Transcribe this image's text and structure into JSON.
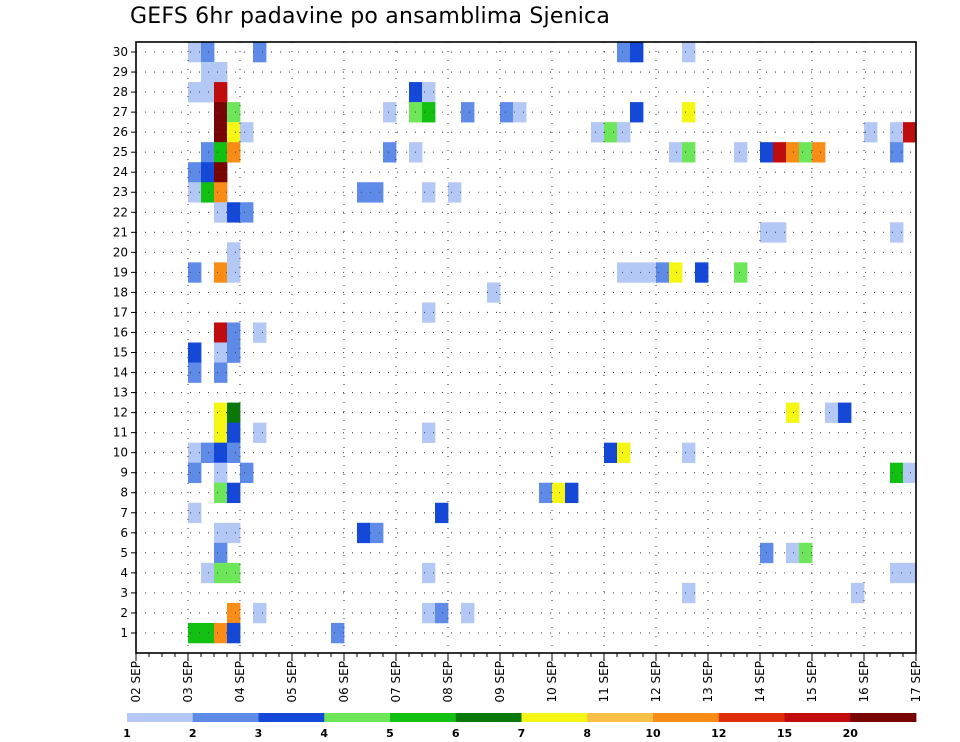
{
  "chart_data": {
    "type": "heatmap",
    "title": "GEFS 6hr padavine po ansamblima Sjenica",
    "xlabel": "",
    "ylabel": "",
    "x_ticks": [
      "02 SEP",
      "03 SEP",
      "04 SEP",
      "05 SEP",
      "06 SEP",
      "07 SEP",
      "08 SEP",
      "09 SEP",
      "10 SEP",
      "11 SEP",
      "12 SEP",
      "13 SEP",
      "14 SEP",
      "15 SEP",
      "16 SEP",
      "17 SEP"
    ],
    "y_ticks": [
      "1",
      "2",
      "3",
      "4",
      "5",
      "6",
      "7",
      "8",
      "9",
      "10",
      "11",
      "12",
      "13",
      "14",
      "15",
      "16",
      "17",
      "18",
      "19",
      "20",
      "21",
      "22",
      "23",
      "24",
      "25",
      "26",
      "27",
      "28",
      "29",
      "30"
    ],
    "ylim": [
      0,
      30.5
    ],
    "xlim": [
      0,
      60
    ],
    "time_step": "6hr",
    "grid": true,
    "colorbar": {
      "thresholds": [
        "1",
        "2",
        "3",
        "4",
        "5",
        "6",
        "7",
        "8",
        "10",
        "12",
        "15",
        "20"
      ],
      "colors": [
        "#b4c8f6",
        "#5e8ae8",
        "#1448d8",
        "#6ee65a",
        "#12c012",
        "#087808",
        "#f6f614",
        "#f8c046",
        "#f88c14",
        "#e02e0c",
        "#c00c0c",
        "#780404"
      ]
    },
    "cells": [
      [
        30,
        5,
        1
      ],
      [
        30,
        6,
        2
      ],
      [
        30,
        10,
        2
      ],
      [
        30,
        38,
        2
      ],
      [
        30,
        39,
        3
      ],
      [
        30,
        43,
        1
      ],
      [
        29,
        6,
        1
      ],
      [
        29,
        7,
        1
      ],
      [
        28,
        5,
        1
      ],
      [
        28,
        6,
        1
      ],
      [
        28,
        7,
        11
      ],
      [
        28,
        22,
        3
      ],
      [
        28,
        23,
        1
      ],
      [
        27,
        7,
        12
      ],
      [
        27,
        8,
        4
      ],
      [
        27,
        20,
        1
      ],
      [
        27,
        22,
        4
      ],
      [
        27,
        23,
        5
      ],
      [
        27,
        26,
        2
      ],
      [
        27,
        29,
        2
      ],
      [
        27,
        30,
        1
      ],
      [
        27,
        39,
        3
      ],
      [
        27,
        43,
        7
      ],
      [
        26,
        7,
        12
      ],
      [
        26,
        8,
        7
      ],
      [
        26,
        9,
        1
      ],
      [
        26,
        36,
        1
      ],
      [
        26,
        37,
        4
      ],
      [
        26,
        38,
        1
      ],
      [
        26,
        57,
        1
      ],
      [
        26,
        59,
        1
      ],
      [
        26,
        60,
        11
      ],
      [
        25,
        6,
        2
      ],
      [
        25,
        7,
        5
      ],
      [
        25,
        8,
        9
      ],
      [
        25,
        20,
        2
      ],
      [
        25,
        22,
        1
      ],
      [
        25,
        42,
        1
      ],
      [
        25,
        43,
        4
      ],
      [
        25,
        47,
        1
      ],
      [
        25,
        49,
        3
      ],
      [
        25,
        50,
        11
      ],
      [
        25,
        51,
        9
      ],
      [
        25,
        52,
        4
      ],
      [
        25,
        53,
        9
      ],
      [
        25,
        59,
        2
      ],
      [
        24,
        5,
        2
      ],
      [
        24,
        6,
        3
      ],
      [
        24,
        7,
        12
      ],
      [
        23,
        5,
        1
      ],
      [
        23,
        6,
        5
      ],
      [
        23,
        7,
        9
      ],
      [
        23,
        18,
        2
      ],
      [
        23,
        19,
        2
      ],
      [
        23,
        23,
        1
      ],
      [
        23,
        25,
        1
      ],
      [
        22,
        7,
        1
      ],
      [
        22,
        8,
        3
      ],
      [
        22,
        9,
        2
      ],
      [
        21,
        49,
        1
      ],
      [
        21,
        50,
        1
      ],
      [
        21,
        59,
        1
      ],
      [
        20,
        8,
        1
      ],
      [
        19,
        5,
        2
      ],
      [
        19,
        7,
        9
      ],
      [
        19,
        8,
        1
      ],
      [
        19,
        38,
        1
      ],
      [
        19,
        39,
        1
      ],
      [
        19,
        40,
        1
      ],
      [
        19,
        41,
        2
      ],
      [
        19,
        42,
        7
      ],
      [
        19,
        44,
        3
      ],
      [
        19,
        47,
        4
      ],
      [
        18,
        28,
        1
      ],
      [
        17,
        23,
        1
      ],
      [
        16,
        7,
        11
      ],
      [
        16,
        8,
        2
      ],
      [
        16,
        10,
        1
      ],
      [
        15,
        5,
        3
      ],
      [
        15,
        7,
        1
      ],
      [
        15,
        8,
        2
      ],
      [
        14,
        5,
        2
      ],
      [
        14,
        7,
        2
      ],
      [
        12,
        7,
        7
      ],
      [
        12,
        8,
        6
      ],
      [
        12,
        51,
        7
      ],
      [
        12,
        54,
        1
      ],
      [
        12,
        55,
        3
      ],
      [
        11,
        7,
        7
      ],
      [
        11,
        8,
        3
      ],
      [
        11,
        10,
        1
      ],
      [
        11,
        23,
        1
      ],
      [
        10,
        5,
        1
      ],
      [
        10,
        6,
        2
      ],
      [
        10,
        7,
        3
      ],
      [
        10,
        8,
        2
      ],
      [
        10,
        37,
        3
      ],
      [
        10,
        38,
        7
      ],
      [
        10,
        43,
        1
      ],
      [
        9,
        5,
        2
      ],
      [
        9,
        7,
        1
      ],
      [
        9,
        9,
        2
      ],
      [
        9,
        59,
        5
      ],
      [
        9,
        60,
        1
      ],
      [
        8,
        7,
        4
      ],
      [
        8,
        8,
        3
      ],
      [
        8,
        32,
        2
      ],
      [
        8,
        33,
        7
      ],
      [
        8,
        34,
        3
      ],
      [
        7,
        5,
        1
      ],
      [
        7,
        24,
        3
      ],
      [
        6,
        7,
        1
      ],
      [
        6,
        8,
        1
      ],
      [
        6,
        18,
        3
      ],
      [
        6,
        19,
        2
      ],
      [
        5,
        7,
        2
      ],
      [
        5,
        49,
        2
      ],
      [
        5,
        51,
        1
      ],
      [
        5,
        52,
        4
      ],
      [
        4,
        6,
        1
      ],
      [
        4,
        7,
        4
      ],
      [
        4,
        8,
        4
      ],
      [
        4,
        23,
        1
      ],
      [
        4,
        59,
        1
      ],
      [
        4,
        60,
        1
      ],
      [
        3,
        43,
        1
      ],
      [
        3,
        56,
        1
      ],
      [
        2,
        8,
        9
      ],
      [
        2,
        10,
        1
      ],
      [
        2,
        23,
        1
      ],
      [
        2,
        24,
        2
      ],
      [
        2,
        26,
        1
      ],
      [
        1,
        5,
        5
      ],
      [
        1,
        6,
        5
      ],
      [
        1,
        7,
        9
      ],
      [
        1,
        8,
        3
      ],
      [
        1,
        16,
        2
      ]
    ]
  }
}
